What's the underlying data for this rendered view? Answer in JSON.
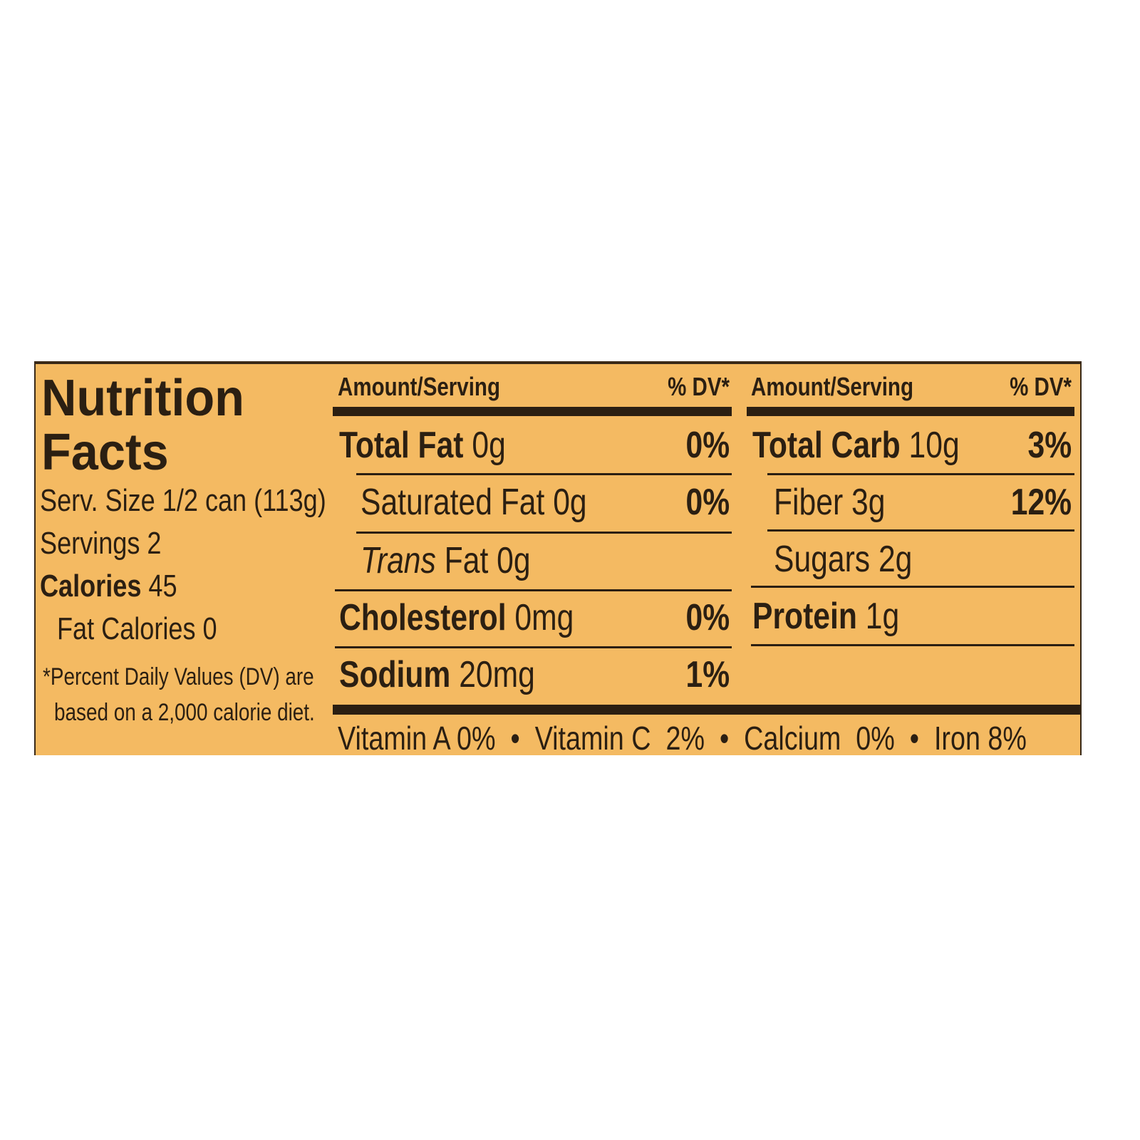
{
  "title_line1": "Nutrition",
  "title_line2": "Facts",
  "serving_size": "Serv. Size 1/2 can (113g)",
  "servings": "Servings 2",
  "calories_label": "Calories",
  "calories_value": "45",
  "fat_calories": "Fat Calories 0",
  "footnote_line1": "*Percent Daily Values (DV) are",
  "footnote_line2": "based on a 2,000 calorie diet.",
  "header": {
    "amount": "Amount/Serving",
    "dv": "% DV*"
  },
  "left_rows": [
    {
      "name": "Total Fat",
      "amount": "0g",
      "dv": "0%"
    },
    {
      "name": "Saturated Fat",
      "amount": "0g",
      "dv": "0%"
    },
    {
      "name": "Trans",
      "suffix": "Fat 0g",
      "dv": ""
    },
    {
      "name": "Cholesterol",
      "amount": "0mg",
      "dv": "0%"
    },
    {
      "name": "Sodium",
      "amount": "20mg",
      "dv": "1%"
    }
  ],
  "right_rows": [
    {
      "name": "Total Carb",
      "amount": "10g",
      "dv": "3%"
    },
    {
      "name": "Fiber",
      "amount": "3g",
      "dv": "12%"
    },
    {
      "name": "Sugars",
      "amount": "2g",
      "dv": ""
    },
    {
      "name": "Protein",
      "amount": "1g",
      "dv": ""
    }
  ],
  "vitamins": "Vitamin A 0%  •  Vitamin C  2%  •  Calcium  0%  •  Iron 8%",
  "colors": {
    "background": "#f4ba62",
    "ink": "#2b1f12"
  }
}
